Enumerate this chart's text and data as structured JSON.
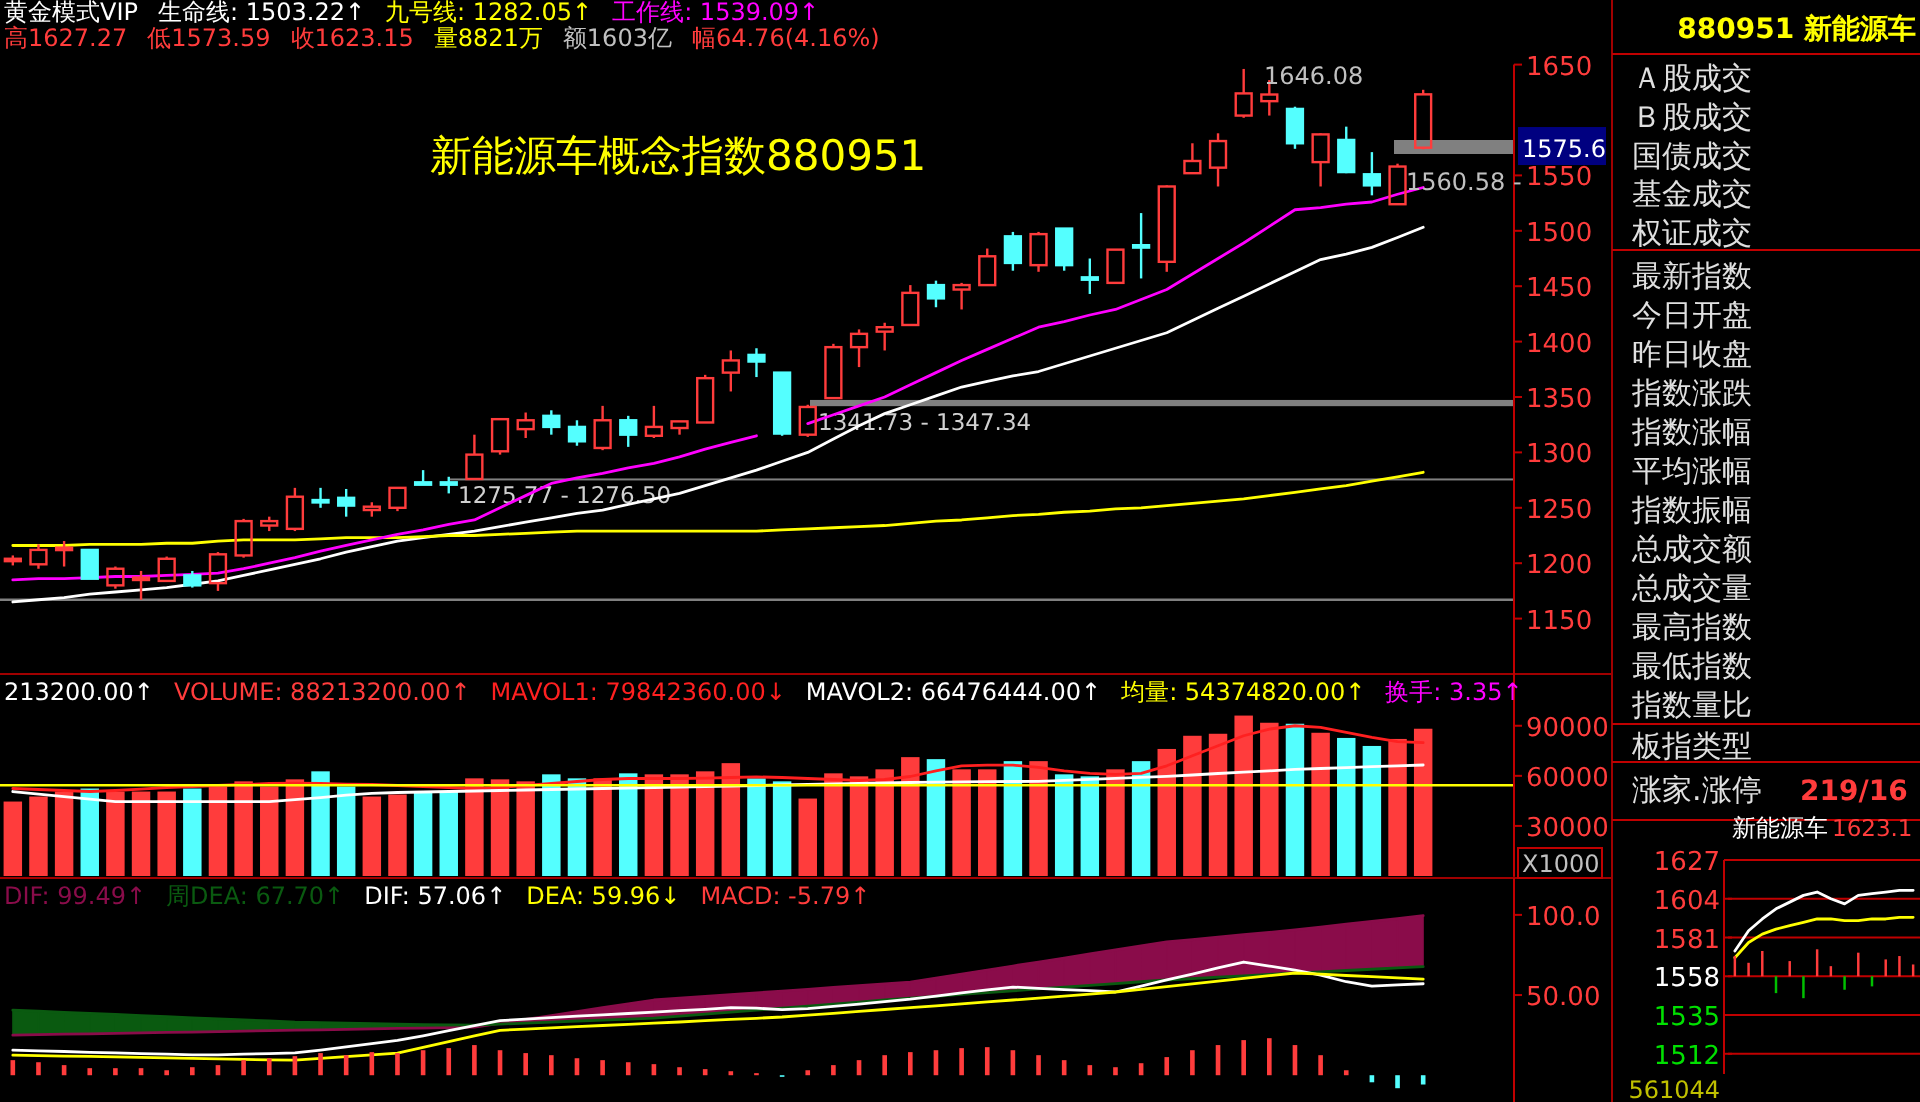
{
  "chart_data": [
    {
      "type": "candlestick",
      "title": "新能源车概念指数880951",
      "legend_title": "黄金模式VIP",
      "legend": "top",
      "categories": [
        null,
        null,
        null,
        null,
        null,
        null,
        null,
        null,
        null,
        null,
        null,
        null,
        null,
        null,
        null,
        null,
        null,
        null,
        null,
        null,
        null,
        null,
        null,
        null,
        null,
        null,
        null,
        null,
        null,
        null,
        null,
        null,
        null,
        null,
        null,
        null,
        null,
        null,
        null,
        null,
        null,
        null,
        null,
        null,
        null,
        null,
        null,
        null,
        null,
        null,
        null,
        null,
        null,
        null,
        null,
        null
      ],
      "ohlc": [
        [
          1202,
          1207,
          1198,
          1204
        ],
        [
          1199,
          1217,
          1195,
          1212
        ],
        [
          1212,
          1220,
          1197,
          1214
        ],
        [
          1212,
          1212,
          1186,
          1186
        ],
        [
          1180,
          1197,
          1177,
          1195
        ],
        [
          1185,
          1193,
          1167,
          1187
        ],
        [
          1184,
          1206,
          1184,
          1204
        ],
        [
          1189,
          1193,
          1178,
          1180
        ],
        [
          1182,
          1210,
          1175,
          1208
        ],
        [
          1207,
          1240,
          1205,
          1238
        ],
        [
          1234,
          1242,
          1229,
          1238
        ],
        [
          1231,
          1268,
          1229,
          1260
        ],
        [
          1257,
          1268,
          1250,
          1255
        ],
        [
          1259,
          1267,
          1242,
          1252
        ],
        [
          1248,
          1255,
          1242,
          1251
        ],
        [
          1250,
          1268,
          1247,
          1268
        ],
        [
          1273,
          1284,
          1271,
          1271
        ],
        [
          1273,
          1278,
          1263,
          1271
        ],
        [
          1276,
          1316,
          1276,
          1298
        ],
        [
          1301,
          1330,
          1298,
          1330
        ],
        [
          1321,
          1336,
          1313,
          1329
        ],
        [
          1333,
          1338,
          1316,
          1323
        ],
        [
          1323,
          1329,
          1306,
          1310
        ],
        [
          1304,
          1342,
          1302,
          1329
        ],
        [
          1329,
          1333,
          1305,
          1316
        ],
        [
          1315,
          1342,
          1313,
          1323
        ],
        [
          1322,
          1328,
          1316,
          1328
        ],
        [
          1327,
          1370,
          1327,
          1367
        ],
        [
          1372,
          1392,
          1355,
          1383
        ],
        [
          1388,
          1394,
          1368,
          1382
        ],
        [
          1372,
          1372,
          1315,
          1317
        ],
        [
          1316,
          1343,
          1314,
          1341
        ],
        [
          1349,
          1398,
          1349,
          1395
        ],
        [
          1395,
          1411,
          1377,
          1407
        ],
        [
          1409,
          1417,
          1392,
          1413
        ],
        [
          1415,
          1451,
          1415,
          1444
        ],
        [
          1451,
          1455,
          1431,
          1439
        ],
        [
          1447,
          1453,
          1429,
          1451
        ],
        [
          1451,
          1484,
          1451,
          1477
        ],
        [
          1495,
          1499,
          1464,
          1471
        ],
        [
          1469,
          1499,
          1463,
          1497
        ],
        [
          1502,
          1502,
          1464,
          1469
        ],
        [
          1458,
          1475,
          1443,
          1456
        ],
        [
          1453,
          1483,
          1453,
          1483
        ],
        [
          1487,
          1516,
          1457,
          1485
        ],
        [
          1472,
          1541,
          1463,
          1540
        ],
        [
          1552,
          1579,
          1552,
          1563
        ],
        [
          1557,
          1588,
          1540,
          1581
        ],
        [
          1604,
          1646.08,
          1602,
          1624
        ],
        [
          1617,
          1636,
          1604,
          1623
        ],
        [
          1610,
          1612,
          1574,
          1579
        ],
        [
          1562,
          1588,
          1540,
          1587
        ],
        [
          1582,
          1594,
          1552,
          1553
        ],
        [
          1551,
          1571,
          1532,
          1541
        ],
        [
          1524,
          1560.58,
          1524,
          1558
        ],
        [
          1575,
          1627.27,
          1573.59,
          1623.15
        ]
      ],
      "series": [
        {
          "name": "生命线: 1503.22↑",
          "type": "line",
          "color": "#ffffff",
          "values": [
            1165,
            1167,
            1169,
            1172,
            1174,
            1176,
            1178,
            1181,
            1184,
            1189,
            1194,
            1199,
            1204,
            1210,
            1215,
            1220,
            1223,
            1226,
            1229,
            1233,
            1237,
            1241,
            1245,
            1248,
            1253,
            1258,
            1263,
            1270,
            1277,
            1284,
            1292,
            1300,
            1312,
            1324,
            1335,
            1343,
            1351,
            1359,
            1364,
            1369,
            1373,
            1380,
            1387,
            1394,
            1401,
            1408,
            1419,
            1430,
            1441,
            1452,
            1463,
            1474,
            1479,
            1485,
            1494,
            1503.22
          ]
        },
        {
          "name": "九号线: 1282.05↑",
          "type": "line",
          "color": "#ffff00",
          "values": [
            1216,
            1216,
            1216,
            1217,
            1217,
            1217,
            1218,
            1218,
            1220,
            1221,
            1221,
            1221,
            1222,
            1223,
            1223,
            1223,
            1224,
            1225,
            1225,
            1226,
            1227,
            1228,
            1229,
            1229,
            1229,
            1229,
            1229,
            1229,
            1229,
            1229,
            1230,
            1231,
            1232,
            1233,
            1234,
            1236,
            1238,
            1239,
            1241,
            1243,
            1244,
            1246,
            1247,
            1249,
            1250,
            1252,
            1254,
            1256,
            1258,
            1261,
            1264,
            1267,
            1270,
            1274,
            1278,
            1282.05
          ]
        },
        {
          "name": "工作线: 1539.09↑",
          "type": "line",
          "color": "#ff00ff",
          "values": [
            1185,
            1186,
            1186,
            1187,
            1188,
            1188,
            1189,
            1190,
            1191,
            1195,
            1200,
            1205,
            1211,
            1216,
            1221,
            1226,
            1230,
            1235,
            1239,
            1250,
            1261,
            1272,
            1277,
            1281,
            1286,
            1290,
            1296,
            1303,
            1309,
            1315,
            null,
            1326,
            1334,
            1342,
            1350,
            1361,
            1372,
            1383,
            1393,
            1403,
            1413,
            1418,
            1424,
            1429,
            1438,
            1447,
            1461,
            1475,
            1489,
            1504,
            1519,
            1521,
            1524,
            1526,
            1533,
            1539.09
          ]
        }
      ],
      "ylim": [
        1100,
        1650
      ],
      "yticks": [
        1150,
        1200,
        1250,
        1300,
        1350,
        1400,
        1450,
        1500,
        1550,
        1650
      ],
      "bands": [
        {
          "axis": "y",
          "from": 1341.73,
          "to": 1347.34,
          "label": "1341.73 - 1347.34",
          "color": "#808080"
        },
        {
          "axis": "y",
          "from": 1275.77,
          "to": 1276.5,
          "label": "1275.77 - 1276.50",
          "color": "#808080"
        }
      ],
      "ref_lines": [
        {
          "axis": "y",
          "value": 1167,
          "color": "#808080"
        },
        {
          "axis": "y",
          "value": 1575.6,
          "label": "1575.6",
          "color": "#808080"
        }
      ],
      "annotations": [
        "高1627.27",
        "低1573.59",
        "收1623.15",
        "量8821万",
        "额1603亿",
        "幅64.76(4.16%)",
        "1646.08",
        "1560.58 -"
      ]
    },
    {
      "type": "bar",
      "legend": "top left",
      "ylabel": "X1000",
      "categories": [
        null,
        null,
        null,
        null,
        null,
        null,
        null,
        null,
        null,
        null,
        null,
        null,
        null,
        null,
        null,
        null,
        null,
        null,
        null,
        null,
        null,
        null,
        null,
        null,
        null,
        null,
        null,
        null,
        null,
        null,
        null,
        null,
        null,
        null,
        null,
        null,
        null,
        null,
        null,
        null,
        null,
        null,
        null,
        null,
        null,
        null,
        null,
        null,
        null,
        null,
        null,
        null,
        null,
        null,
        null,
        null
      ],
      "series": [
        {
          "name": "VOLUME: 88213200.00↑",
          "type": "bar",
          "colors": [
            "#ff3c3c",
            "#ff3c3c",
            "#ff3c3c",
            "#54ffff",
            "#ff3c3c",
            "#ff3c3c",
            "#ff3c3c",
            "#54ffff",
            "#ff3c3c",
            "#ff3c3c",
            "#ff3c3c",
            "#ff3c3c",
            "#54ffff",
            "#54ffff",
            "#ff3c3c",
            "#ff3c3c",
            "#54ffff",
            "#54ffff",
            "#ff3c3c",
            "#ff3c3c",
            "#ff3c3c",
            "#54ffff",
            "#54ffff",
            "#ff3c3c",
            "#54ffff",
            "#ff3c3c",
            "#ff3c3c",
            "#ff3c3c",
            "#ff3c3c",
            "#54ffff",
            "#54ffff",
            "#ff3c3c",
            "#ff3c3c",
            "#ff3c3c",
            "#ff3c3c",
            "#ff3c3c",
            "#54ffff",
            "#ff3c3c",
            "#ff3c3c",
            "#54ffff",
            "#ff3c3c",
            "#54ffff",
            "#54ffff",
            "#ff3c3c",
            "#54ffff",
            "#ff3c3c",
            "#ff3c3c",
            "#ff3c3c",
            "#ff3c3c",
            "#ff3c3c",
            "#54ffff",
            "#ff3c3c",
            "#54ffff",
            "#54ffff",
            "#ff3c3c",
            "#ff3c3c"
          ],
          "values": [
            44600,
            47600,
            50600,
            52400,
            50600,
            50600,
            50600,
            52400,
            53600,
            56700,
            53600,
            57900,
            62700,
            53600,
            47600,
            48800,
            50600,
            50600,
            58500,
            57900,
            56700,
            60900,
            58500,
            58500,
            61500,
            60900,
            60900,
            62700,
            67600,
            58500,
            56700,
            46400,
            61500,
            59700,
            63900,
            71200,
            70000,
            63900,
            63900,
            68800,
            68800,
            60900,
            59700,
            63900,
            68800,
            76100,
            84000,
            85200,
            96100,
            91800,
            91200,
            85800,
            82700,
            77900,
            82100,
            88213.2
          ]
        },
        {
          "name": "MAVOL1: 79842360.00↓",
          "type": "line",
          "color": "#ff2020",
          "values": [
            52400,
            51800,
            51200,
            50600,
            51200,
            52000,
            53000,
            53600,
            54200,
            54800,
            55400,
            55600,
            55400,
            55000,
            54800,
            54200,
            53600,
            53000,
            52400,
            53000,
            54200,
            55400,
            56600,
            57800,
            58400,
            58400,
            58400,
            58600,
            59000,
            59400,
            59000,
            58400,
            57800,
            57200,
            57800,
            59600,
            63000,
            66000,
            66400,
            66400,
            65000,
            63000,
            61500,
            60900,
            61500,
            66000,
            72000,
            78000,
            84000,
            88000,
            90000,
            89000,
            86000,
            83000,
            80500,
            79842.36
          ]
        },
        {
          "name": "MAVOL2: 66476444.00↑",
          "type": "line",
          "color": "#ffffff",
          "values": [
            50600,
            49000,
            47500,
            46000,
            44600,
            44600,
            44600,
            44600,
            44600,
            44600,
            44600,
            45800,
            47000,
            48500,
            49500,
            50000,
            50300,
            50600,
            50900,
            51200,
            51500,
            51800,
            52100,
            52400,
            52700,
            53000,
            53300,
            53600,
            53900,
            54200,
            54500,
            54800,
            55100,
            55400,
            55700,
            56000,
            56200,
            56400,
            56500,
            56600,
            56700,
            57300,
            57900,
            58500,
            59100,
            59700,
            60500,
            61400,
            62200,
            63000,
            63900,
            64400,
            64900,
            65500,
            66000,
            66476.444
          ]
        }
      ],
      "ref_lines": [
        {
          "axis": "y",
          "value": 54374.82,
          "label": "均量: 54374820.00↑",
          "color": "#ffff00"
        }
      ],
      "ylim": [
        0,
        121000
      ],
      "yticks": [
        30000,
        60000,
        90000
      ],
      "annotations": [
        "213200.00↑",
        "换手: 3.35↑"
      ]
    },
    {
      "type": "line",
      "legend": "top left",
      "categories": [
        null,
        null,
        null,
        null,
        null,
        null,
        null,
        null,
        null,
        null,
        null,
        null,
        null,
        null,
        null,
        null,
        null,
        null,
        null,
        null,
        null,
        null,
        null,
        null,
        null,
        null,
        null,
        null,
        null,
        null,
        null,
        null,
        null,
        null,
        null,
        null,
        null,
        null,
        null,
        null,
        null,
        null,
        null,
        null,
        null,
        null,
        null,
        null,
        null,
        null,
        null,
        null,
        null,
        null,
        null,
        null
      ],
      "series": [
        {
          "name": "DIF: 99.49↑",
          "type": "line",
          "color": "#8a0c4a",
          "values": [
            25,
            25.3,
            25.6,
            25.8,
            26.1,
            26.4,
            26.7,
            26.9,
            27.2,
            27.5,
            27.8,
            28.1,
            28.3,
            28.6,
            28.9,
            29.2,
            29.4,
            29.7,
            30,
            32.4,
            34.8,
            37.2,
            39.7,
            42.1,
            44.5,
            46.9,
            48,
            49.1,
            50.3,
            51.4,
            52.5,
            53.6,
            54.7,
            55.9,
            57,
            58.1,
            60.6,
            63.1,
            65.6,
            68.1,
            70.6,
            73.1,
            75.6,
            78.1,
            80.6,
            83.1,
            84.6,
            86.1,
            87.6,
            89.1,
            90.6,
            92.4,
            94.2,
            95.9,
            97.7,
            99.49
          ],
          "lower": [
            null,
            null,
            null,
            null,
            null,
            null,
            null,
            null,
            null,
            null,
            null,
            null,
            null,
            null,
            null,
            null,
            null,
            null,
            null,
            31.9,
            32.5,
            33.1,
            33.8,
            34.4,
            35,
            35.6,
            36.9,
            38.1,
            39.4,
            40.6,
            41.9,
            43.1,
            44.4,
            45.6,
            46.9,
            48.1,
            49.2,
            50.4,
            51.5,
            52.6,
            53.8,
            54.9,
            56,
            57.1,
            58.3,
            59.4,
            60.3,
            61.2,
            62,
            62.9,
            63.75,
            64.5,
            65.3,
            66.1,
            66.9,
            67.7
          ],
          "upper": [
            null,
            null,
            null,
            null,
            null,
            null,
            null,
            null,
            null,
            null,
            null,
            null,
            null,
            null,
            null,
            null,
            null,
            null,
            null,
            32.4,
            34.8,
            37.2,
            39.7,
            42.1,
            44.5,
            46.9,
            48,
            49.1,
            50.3,
            51.4,
            52.5,
            53.6,
            54.7,
            55.9,
            57,
            58.1,
            60.6,
            63.1,
            65.6,
            68.1,
            70.6,
            73.1,
            75.6,
            78.1,
            80.6,
            83.1,
            84.6,
            86.1,
            87.6,
            89.1,
            90.6,
            92.4,
            94.2,
            95.9,
            97.7,
            99.49
          ]
        },
        {
          "name": "周DEA: 67.70↑",
          "type": "line",
          "color": "#0a5a10",
          "values": [
            40.6,
            39.9,
            39.2,
            38.6,
            37.9,
            37.2,
            36.5,
            35.8,
            35.1,
            34.5,
            33.8,
            33.1,
            32.8,
            32.5,
            32.2,
            31.9,
            31.6,
            31.4,
            31.3,
            31.9,
            32.5,
            33.1,
            33.8,
            34.4,
            35,
            35.6,
            36.9,
            38.1,
            39.4,
            40.6,
            41.9,
            43.1,
            44.4,
            45.6,
            46.9,
            48.1,
            49.2,
            50.4,
            51.5,
            52.6,
            53.8,
            54.9,
            56,
            57.1,
            58.3,
            59.4,
            60.3,
            61.2,
            62,
            62.9,
            63.75,
            64.5,
            65.3,
            66.1,
            66.9,
            67.7
          ],
          "lower": [
            25,
            25.3,
            25.6,
            25.8,
            26.1,
            26.4,
            26.7,
            26.9,
            27.2,
            27.5,
            27.8,
            28.1,
            28.3,
            28.6,
            28.9,
            29.2,
            29.4,
            29.7,
            30,
            null,
            null,
            null,
            null,
            null,
            null,
            null,
            null,
            null,
            null,
            null,
            null,
            null,
            null,
            null,
            null,
            null,
            null,
            null,
            null,
            null,
            null,
            null,
            null,
            null,
            null,
            null,
            null,
            null,
            null,
            null,
            null,
            null,
            null,
            null,
            null,
            null
          ],
          "upper": [
            40.6,
            39.9,
            39.2,
            38.6,
            37.9,
            37.2,
            36.5,
            35.8,
            35.1,
            34.5,
            33.8,
            33.1,
            32.8,
            32.5,
            32.2,
            31.9,
            31.6,
            31.4,
            31.3,
            null,
            null,
            null,
            null,
            null,
            null,
            null,
            null,
            null,
            null,
            null,
            null,
            null,
            null,
            null,
            null,
            null,
            null,
            null,
            null,
            null,
            null,
            null,
            null,
            null,
            null,
            null,
            null,
            null,
            null,
            null,
            null,
            null,
            null,
            null,
            null,
            null
          ]
        },
        {
          "name": "DIF: 57.06↑",
          "type": "line",
          "color": "#ffffff",
          "values": [
            15.6,
            15.2,
            14.8,
            14.3,
            13.9,
            13.5,
            13.1,
            12.7,
            12.7,
            13.1,
            13.5,
            13.9,
            15.7,
            17.7,
            19.7,
            21.7,
            24.6,
            27.8,
            31,
            34,
            35,
            35.9,
            36.8,
            37.7,
            38.5,
            39.4,
            40.3,
            41.1,
            42.2,
            41.8,
            40.9,
            41.5,
            43,
            44.4,
            45.9,
            47.4,
            49.4,
            51.3,
            53.2,
            55,
            54.2,
            53.4,
            52.7,
            51.9,
            55.6,
            59.4,
            63.1,
            66.9,
            70.6,
            68.1,
            65.6,
            62.4,
            58.3,
            55.6,
            56.3,
            57.06
          ]
        },
        {
          "name": "DEA: 59.96↓",
          "type": "line",
          "color": "#ffff00",
          "values": [
            12.5,
            12.2,
            11.9,
            11.7,
            11.4,
            11.1,
            10.8,
            10.5,
            10.2,
            9.9,
            9.6,
            9.4,
            10.5,
            11.6,
            12.7,
            13.8,
            17.4,
            21,
            24.6,
            28,
            28.8,
            29.5,
            30.3,
            31,
            31.7,
            32.5,
            33.2,
            34,
            34.8,
            35.5,
            36.3,
            37.5,
            38.6,
            39.8,
            41,
            42.1,
            43.3,
            44.5,
            45.7,
            46.9,
            48.1,
            49.3,
            50.6,
            51.9,
            53.6,
            55.3,
            57,
            58.7,
            60.4,
            62.1,
            63.75,
            63,
            62.2,
            61.5,
            60.7,
            59.96
          ]
        },
        {
          "name": "MACD: -5.79↑",
          "type": "bar",
          "colors": [
            "#ff3c3c",
            "#ff3c3c",
            "#ff3c3c",
            "#ff3c3c",
            "#ff3c3c",
            "#ff3c3c",
            "#ff3c3c",
            "#ff3c3c",
            "#ff3c3c",
            "#ff3c3c",
            "#ff3c3c",
            "#ff3c3c",
            "#ff3c3c",
            "#ff3c3c",
            "#ff3c3c",
            "#ff3c3c",
            "#ff3c3c",
            "#ff3c3c",
            "#ff3c3c",
            "#ff3c3c",
            "#ff3c3c",
            "#ff3c3c",
            "#ff3c3c",
            "#ff3c3c",
            "#ff3c3c",
            "#ff3c3c",
            "#ff3c3c",
            "#ff3c3c",
            "#ff3c3c",
            "#ff3c3c",
            "#54ffff",
            "#ff3c3c",
            "#ff3c3c",
            "#ff3c3c",
            "#ff3c3c",
            "#ff3c3c",
            "#ff3c3c",
            "#ff3c3c",
            "#ff3c3c",
            "#ff3c3c",
            "#ff3c3c",
            "#ff3c3c",
            "#ff3c3c",
            "#ff3c3c",
            "#ff3c3c",
            "#ff3c3c",
            "#ff3c3c",
            "#ff3c3c",
            "#ff3c3c",
            "#ff3c3c",
            "#ff3c3c",
            "#ff3c3c",
            "#ff3c3c",
            "#54ffff",
            "#54ffff",
            "#54ffff"
          ],
          "values": [
            9.4,
            8.1,
            6.3,
            4.4,
            4.4,
            4.4,
            3.1,
            5,
            6.3,
            9.4,
            10.6,
            11.9,
            13.8,
            12.5,
            14.4,
            13.8,
            15.6,
            16.9,
            18.8,
            15.6,
            13.8,
            12.5,
            10.6,
            9.4,
            8.1,
            6.9,
            5,
            3.8,
            2.5,
            1.3,
            -0.6,
            3.1,
            6.3,
            9.4,
            12.5,
            14.4,
            15.6,
            16.9,
            17.5,
            15.6,
            12.5,
            9.4,
            6.3,
            5,
            7.5,
            11.3,
            15.6,
            18.8,
            21.9,
            23.1,
            18.8,
            12.5,
            3.1,
            -4.4,
            -8.1,
            -5.79
          ]
        }
      ],
      "ylim": [
        -16.7,
        123
      ],
      "yticks": [
        {
          "value": 50,
          "label": "50.00"
        },
        {
          "value": 100,
          "label": "100.0"
        }
      ]
    },
    {
      "type": "other",
      "title": "880951 新能源车",
      "annotations": [
        "Ａ股成交",
        "Ｂ股成交",
        "国债成交",
        "基金成交",
        "权证成交",
        "最新指数",
        "今日开盘",
        "昨日收盘",
        "指数涨跌",
        "指数涨幅",
        "平均涨幅",
        "指数振幅",
        "总成交额",
        "总成交量",
        "最高指数",
        "最低指数",
        "指数量比",
        "板指类型",
        "涨家.涨停",
        "219/16"
      ]
    },
    {
      "type": "line",
      "title": "新能源车",
      "grid": "y",
      "categories": [
        null,
        null,
        null,
        null,
        null,
        null,
        null,
        null,
        null,
        null,
        null,
        null,
        null,
        null
      ],
      "series": [
        {
          "type": "line",
          "color": "#ffffff",
          "values": [
            1573,
            1585,
            1592,
            1598,
            1602,
            1606,
            1608,
            1604,
            1601,
            1606,
            1607,
            1608,
            1609,
            1609
          ]
        },
        {
          "type": "line",
          "color": "#ffff00",
          "values": [
            1569,
            1578,
            1583,
            1586,
            1588,
            1590,
            1592,
            1592,
            1591,
            1591,
            1592,
            1592,
            1593,
            1593
          ]
        },
        {
          "type": "bar",
          "colors": [
            "#ff3c3c",
            "#ff3c3c",
            "#ff3c3c",
            "#00c000",
            "#ff3c3c",
            "#00c000",
            "#ff3c3c",
            "#ff3c3c",
            "#00c000",
            "#ff3c3c",
            "#00c000",
            "#ff3c3c",
            "#ff3c3c",
            "#ff3c3c"
          ],
          "base": [
            1558,
            1558,
            1558,
            1558,
            1558,
            1558,
            1558,
            1558,
            1558,
            1558,
            1558,
            1558,
            1558,
            1558
          ],
          "values": [
            12,
            8,
            15,
            -10,
            9,
            -13,
            16,
            6,
            -8,
            14,
            -6,
            10,
            12,
            7
          ]
        }
      ],
      "ylim": [
        1500,
        1627
      ],
      "yticks": [
        1512,
        1535,
        1558,
        1581,
        1604,
        1627
      ],
      "annotations": [
        "1623.1",
        "561044"
      ]
    }
  ]
}
